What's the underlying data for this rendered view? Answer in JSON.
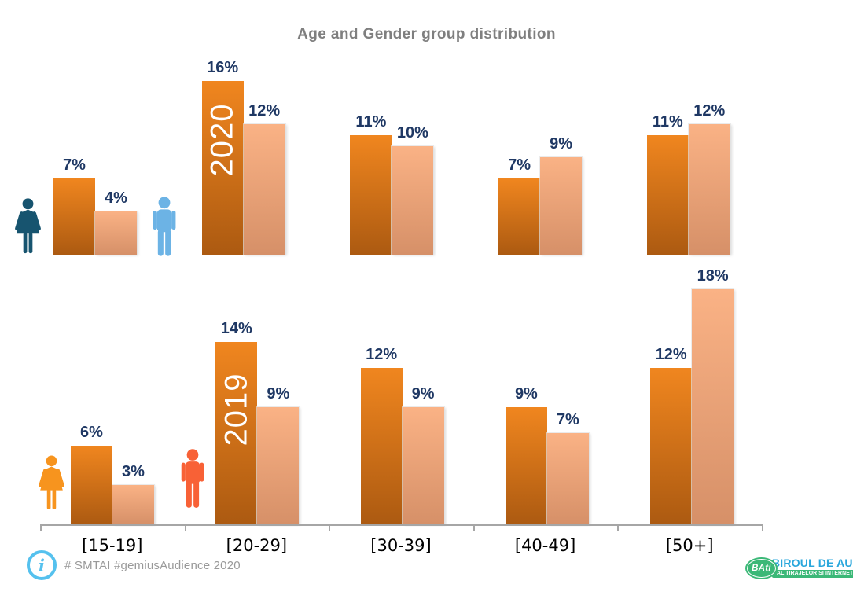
{
  "title": "Age and Gender group distribution",
  "chart_data": {
    "type": "bar",
    "title": "Age and Gender group distribution",
    "categories": [
      "[15-19]",
      "[20-29]",
      "[30-39]",
      "[40-49]",
      "[50+]"
    ],
    "value_suffix": "%",
    "layout_hint": "two grouped-bar rows (2020 on top, 2019 below), dark bar = female, light bar = male, labels above bars, shared x axis at bottom",
    "rows": [
      {
        "year": "2020",
        "series": [
          {
            "name": "female",
            "values": [
              7,
              16,
              11,
              7,
              11
            ]
          },
          {
            "name": "male",
            "values": [
              4,
              12,
              10,
              9,
              12
            ]
          }
        ]
      },
      {
        "year": "2019",
        "series": [
          {
            "name": "female",
            "values": [
              6,
              14,
              12,
              9,
              12
            ]
          },
          {
            "name": "male",
            "values": [
              3,
              9,
              9,
              7,
              18
            ]
          }
        ]
      }
    ],
    "icons": {
      "row_2020": [
        "female-icon",
        "male-icon"
      ],
      "row_2019": [
        "female-icon",
        "male-icon"
      ]
    }
  },
  "colors": {
    "title_text": "#7f7f7f",
    "value_label": "#1F3864",
    "bar_dark_top": "#F0861F",
    "bar_dark_bottom": "#AC5A11",
    "bar_light_top": "#FAB285",
    "bar_light_bottom": "#D69068",
    "year_label": "#FFFFFF",
    "axis": "#A6A6A6",
    "axis_label": "#000000",
    "icon_female_2020": "#17546F",
    "icon_male_2020": "#6CB3E5",
    "icon_female_2019": "#F7941E",
    "icon_male_2019": "#F86136",
    "info_icon": "#55C1EE",
    "footer_text": "#999999",
    "logo_green": "#3BB877",
    "logo_blue": "#2AA7DC"
  },
  "footer": {
    "hashtags": "# SMTAI #gemiusAudience 2020"
  },
  "logo": {
    "abbr": "BAti",
    "line1": "BIROUL DE AUDIT",
    "line2": "AL TIRAJELOR SI INTERNETULUI"
  }
}
